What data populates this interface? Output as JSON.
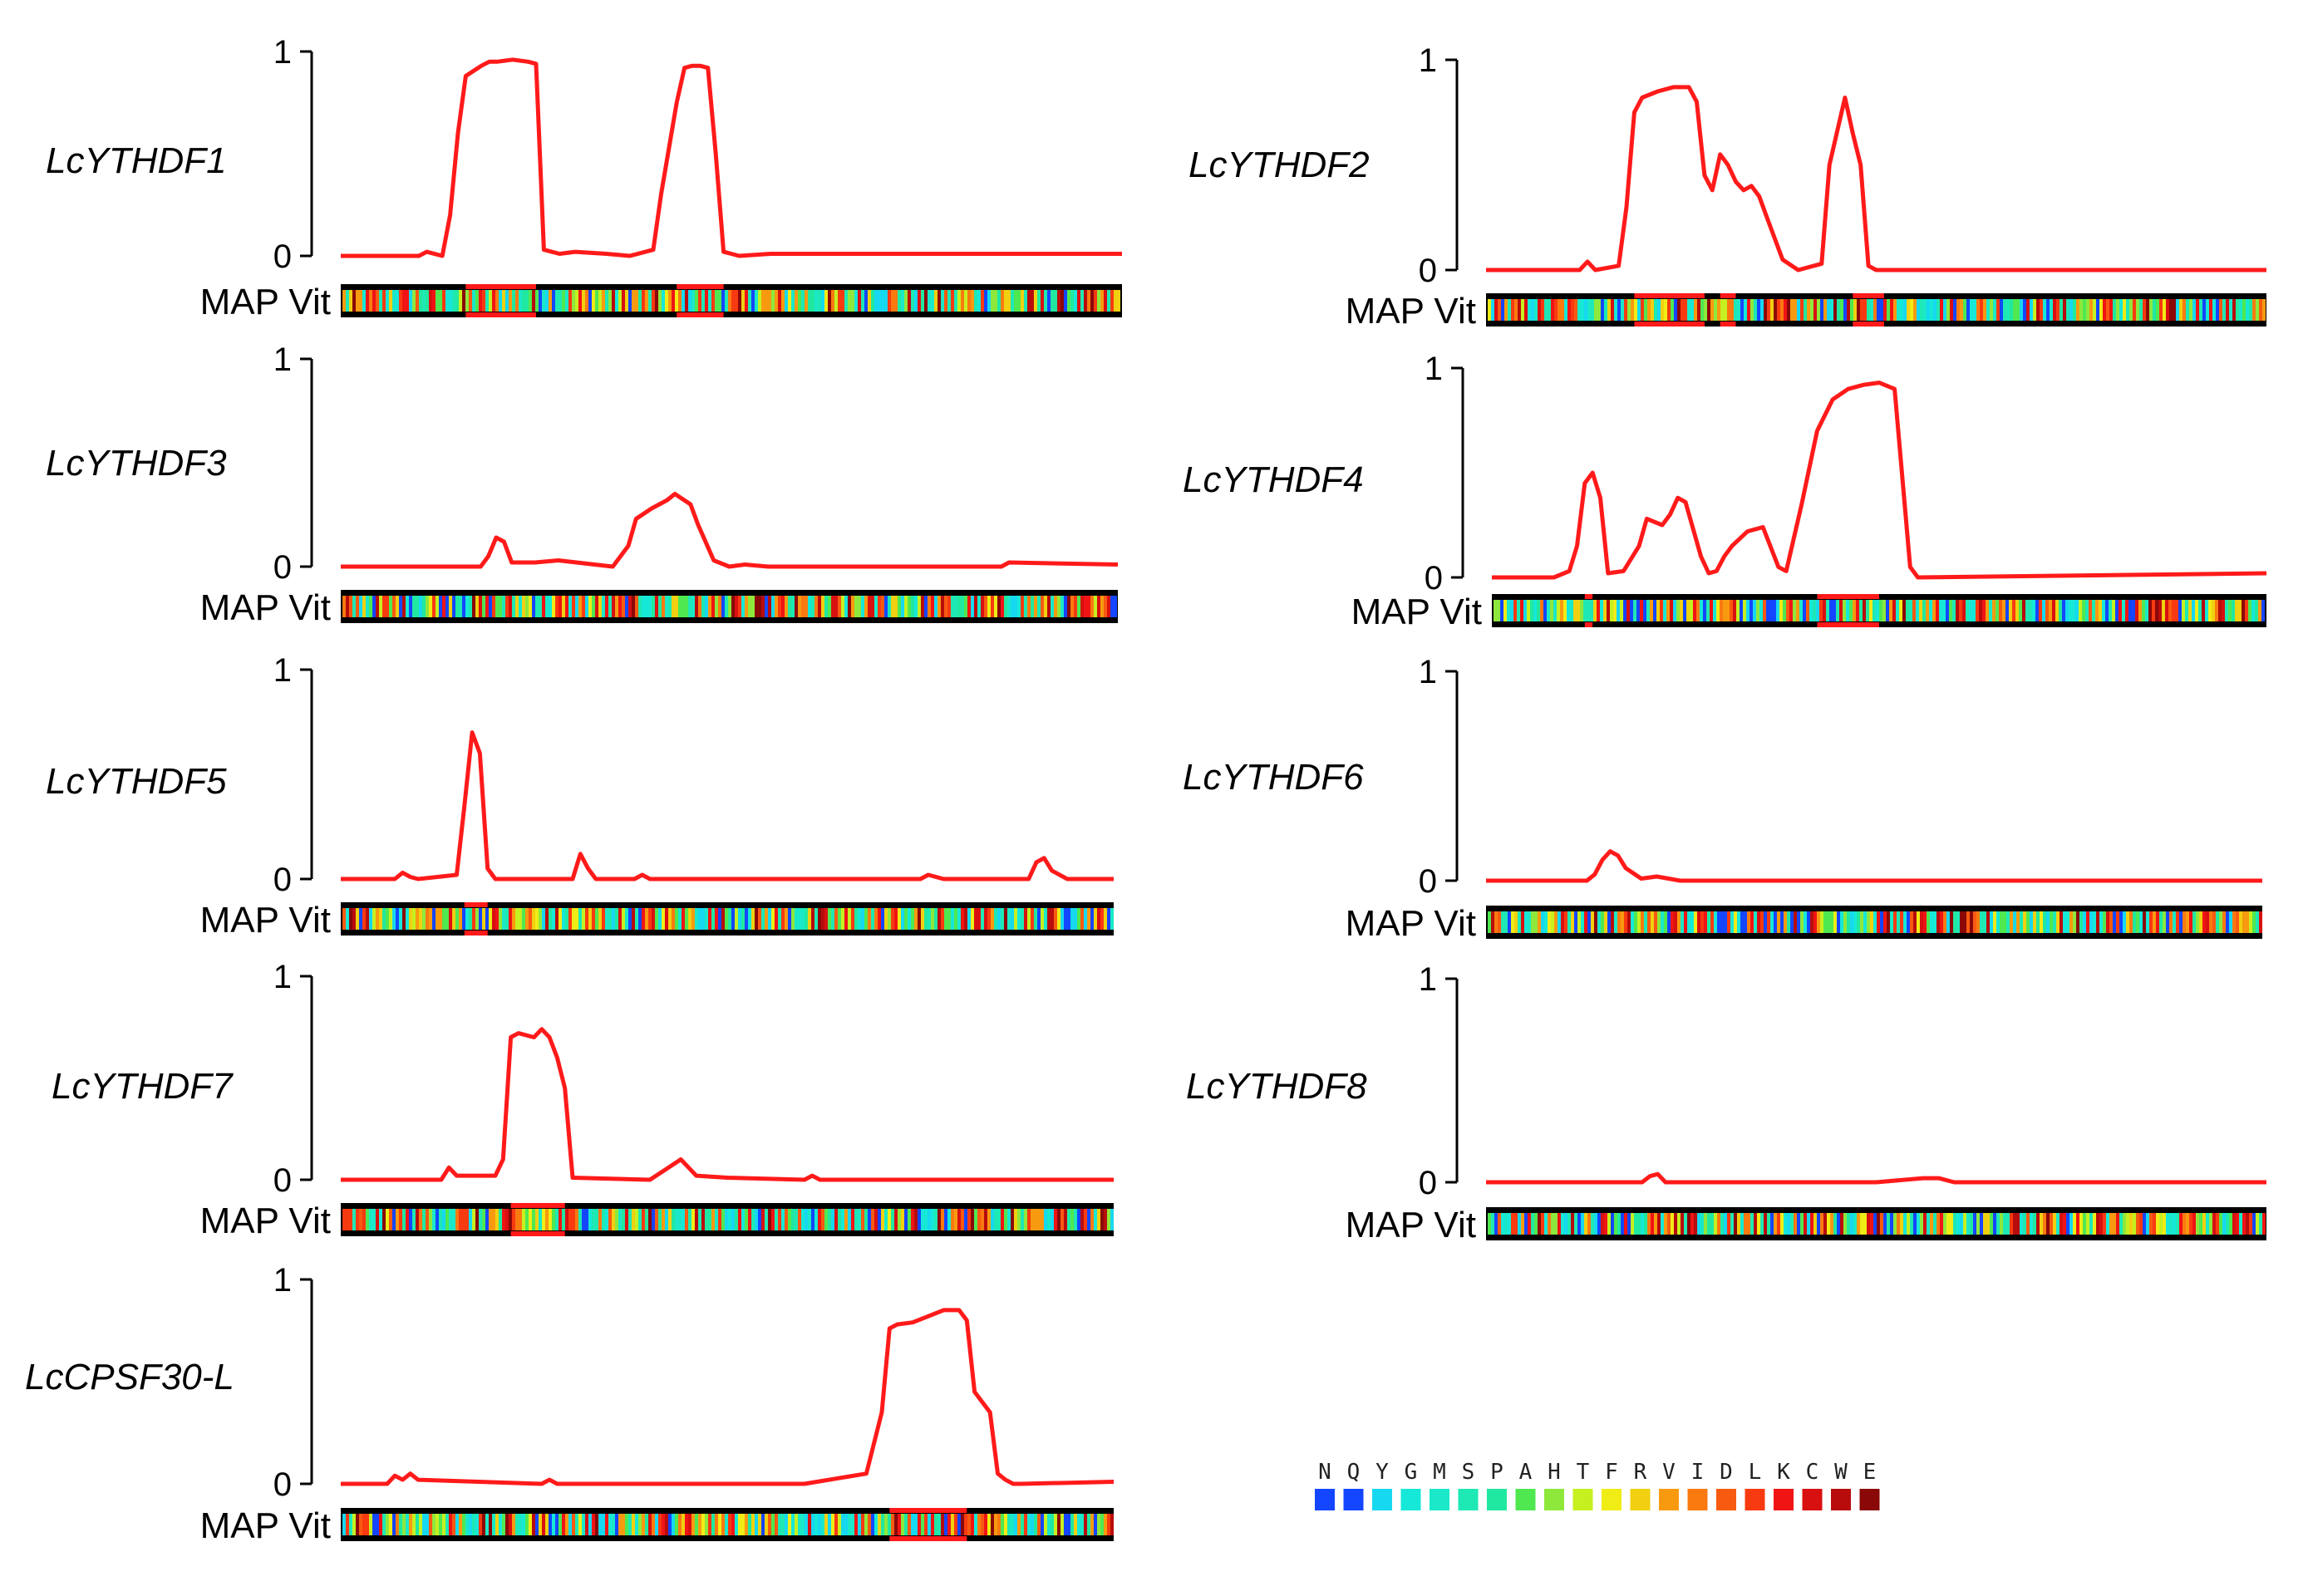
{
  "colors": {
    "line": "#ff1a1a",
    "axis": "#000000",
    "map_bg": "#000000",
    "map_highlight": "#ff1a1a"
  },
  "track_label": "MAP Vit",
  "y_ticks": [
    "0",
    "1"
  ],
  "legend": {
    "letters": [
      "N",
      "Q",
      "Y",
      "G",
      "M",
      "S",
      "P",
      "A",
      "H",
      "T",
      "F",
      "R",
      "V",
      "I",
      "D",
      "L",
      "K",
      "C",
      "W",
      "E"
    ],
    "colors": [
      "#1446ff",
      "#1446ff",
      "#16d8f0",
      "#16e8d8",
      "#1ae8c8",
      "#1ee8b4",
      "#20e8a0",
      "#4fe850",
      "#8ee83c",
      "#c6f020",
      "#f0ec16",
      "#f0d010",
      "#f89a10",
      "#fa7a10",
      "#f85a10",
      "#f83a10",
      "#f01414",
      "#d81010",
      "#b80c0c",
      "#8a0808"
    ]
  },
  "chart_data": [
    {
      "type": "line",
      "title": "LcYTHDF1",
      "ylim": [
        0,
        1
      ],
      "series": [
        {
          "x": [
            0,
            0.1,
            0.11,
            0.13,
            0.14,
            0.15,
            0.16,
            0.18,
            0.19,
            0.2,
            0.22,
            0.24,
            0.25,
            0.26,
            0.28,
            0.3,
            0.34,
            0.37,
            0.4,
            0.41,
            0.43,
            0.44,
            0.45,
            0.46,
            0.47,
            0.48,
            0.49,
            0.5,
            0.51,
            0.55,
            1.0
          ],
          "values": [
            0,
            0,
            0.02,
            0,
            0.2,
            0.6,
            0.88,
            0.93,
            0.95,
            0.95,
            0.96,
            0.95,
            0.94,
            0.03,
            0.01,
            0.02,
            0.01,
            0.0,
            0.03,
            0.3,
            0.75,
            0.92,
            0.93,
            0.93,
            0.92,
            0.5,
            0.02,
            0.01,
            0.0,
            0.01,
            0.01
          ]
        }
      ],
      "map_highlights": [
        [
          0.16,
          0.25
        ],
        [
          0.43,
          0.49
        ]
      ]
    },
    {
      "type": "line",
      "title": "LcYTHDF2",
      "ylim": [
        0,
        1
      ],
      "series": [
        {
          "x": [
            0,
            0.12,
            0.13,
            0.14,
            0.17,
            0.18,
            0.19,
            0.2,
            0.22,
            0.24,
            0.26,
            0.27,
            0.28,
            0.29,
            0.3,
            0.31,
            0.32,
            0.33,
            0.34,
            0.35,
            0.36,
            0.38,
            0.4,
            0.43,
            0.44,
            0.46,
            0.47,
            0.48,
            0.49,
            0.5,
            1.0
          ],
          "values": [
            0,
            0,
            0.04,
            0,
            0.02,
            0.3,
            0.75,
            0.82,
            0.85,
            0.87,
            0.87,
            0.8,
            0.45,
            0.38,
            0.55,
            0.5,
            0.42,
            0.38,
            0.4,
            0.35,
            0.25,
            0.05,
            0.0,
            0.03,
            0.5,
            0.82,
            0.65,
            0.5,
            0.02,
            0.0,
            0.0
          ]
        }
      ],
      "map_highlights": [
        [
          0.19,
          0.28
        ],
        [
          0.3,
          0.32
        ],
        [
          0.47,
          0.51
        ]
      ]
    },
    {
      "type": "line",
      "title": "LcYTHDF3",
      "ylim": [
        0,
        1
      ],
      "series": [
        {
          "x": [
            0,
            0.18,
            0.19,
            0.2,
            0.21,
            0.22,
            0.25,
            0.28,
            0.35,
            0.37,
            0.38,
            0.4,
            0.42,
            0.43,
            0.45,
            0.46,
            0.48,
            0.5,
            0.52,
            0.55,
            0.85,
            0.86,
            1.0
          ],
          "values": [
            0,
            0,
            0.05,
            0.14,
            0.12,
            0.02,
            0.02,
            0.03,
            0.0,
            0.1,
            0.23,
            0.28,
            0.32,
            0.35,
            0.3,
            0.2,
            0.03,
            0.0,
            0.01,
            0.0,
            0.0,
            0.02,
            0.01
          ]
        }
      ],
      "map_highlights": []
    },
    {
      "type": "line",
      "title": "LcYTHDF4",
      "ylim": [
        0,
        1
      ],
      "series": [
        {
          "x": [
            0,
            0.08,
            0.1,
            0.11,
            0.12,
            0.13,
            0.14,
            0.15,
            0.17,
            0.19,
            0.2,
            0.22,
            0.23,
            0.24,
            0.25,
            0.27,
            0.28,
            0.29,
            0.3,
            0.31,
            0.33,
            0.35,
            0.37,
            0.38,
            0.4,
            0.42,
            0.44,
            0.46,
            0.48,
            0.5,
            0.52,
            0.54,
            0.55,
            1.0
          ],
          "values": [
            0,
            0,
            0.03,
            0.15,
            0.45,
            0.5,
            0.38,
            0.02,
            0.03,
            0.15,
            0.28,
            0.25,
            0.3,
            0.38,
            0.36,
            0.1,
            0.02,
            0.03,
            0.1,
            0.15,
            0.22,
            0.24,
            0.05,
            0.03,
            0.35,
            0.7,
            0.85,
            0.9,
            0.92,
            0.93,
            0.9,
            0.05,
            0.0,
            0.02
          ]
        }
      ],
      "map_highlights": [
        [
          0.12,
          0.13
        ],
        [
          0.42,
          0.5
        ]
      ]
    },
    {
      "type": "line",
      "title": "LcYTHDF5",
      "ylim": [
        0,
        1
      ],
      "series": [
        {
          "x": [
            0,
            0.07,
            0.08,
            0.09,
            0.1,
            0.15,
            0.16,
            0.17,
            0.18,
            0.19,
            0.2,
            0.3,
            0.31,
            0.32,
            0.33,
            0.38,
            0.39,
            0.4,
            0.5,
            0.75,
            0.76,
            0.78,
            0.89,
            0.9,
            0.91,
            0.92,
            0.94,
            1.0
          ],
          "values": [
            0,
            0,
            0.03,
            0.01,
            0.0,
            0.02,
            0.35,
            0.7,
            0.6,
            0.05,
            0.0,
            0.0,
            0.12,
            0.05,
            0.0,
            0.0,
            0.02,
            0.0,
            0.0,
            0.0,
            0.02,
            0.0,
            0.0,
            0.08,
            0.1,
            0.04,
            0.0,
            0.0
          ]
        }
      ],
      "map_highlights": [
        [
          0.16,
          0.19
        ]
      ]
    },
    {
      "type": "line",
      "title": "LcYTHDF6",
      "ylim": [
        0,
        1
      ],
      "series": [
        {
          "x": [
            0,
            0.13,
            0.14,
            0.15,
            0.16,
            0.17,
            0.18,
            0.2,
            0.22,
            0.25,
            1.0
          ],
          "values": [
            0,
            0,
            0.03,
            0.1,
            0.14,
            0.12,
            0.06,
            0.01,
            0.02,
            0.0,
            0.0
          ]
        }
      ],
      "map_highlights": []
    },
    {
      "type": "line",
      "title": "LcYTHDF7",
      "ylim": [
        0,
        1
      ],
      "series": [
        {
          "x": [
            0,
            0.13,
            0.14,
            0.15,
            0.2,
            0.21,
            0.22,
            0.23,
            0.25,
            0.26,
            0.27,
            0.28,
            0.29,
            0.3,
            0.4,
            0.42,
            0.44,
            0.45,
            0.46,
            0.5,
            0.6,
            0.61,
            0.62,
            0.68,
            1.0
          ],
          "values": [
            0,
            0,
            0.06,
            0.02,
            0.02,
            0.1,
            0.7,
            0.72,
            0.7,
            0.74,
            0.7,
            0.6,
            0.45,
            0.01,
            0.0,
            0.05,
            0.1,
            0.06,
            0.02,
            0.01,
            0.0,
            0.02,
            0.0,
            0.0,
            0.0
          ]
        }
      ],
      "map_highlights": [
        [
          0.22,
          0.29
        ]
      ]
    },
    {
      "type": "line",
      "title": "LcYTHDF8",
      "ylim": [
        0,
        1
      ],
      "series": [
        {
          "x": [
            0,
            0.2,
            0.21,
            0.22,
            0.23,
            0.5,
            0.56,
            0.58,
            0.6,
            1.0
          ],
          "values": [
            0,
            0,
            0.03,
            0.04,
            0.0,
            0.0,
            0.02,
            0.02,
            0.0,
            0.0
          ]
        }
      ],
      "map_highlights": []
    },
    {
      "type": "line",
      "title": "LcCPSF30-L",
      "ylim": [
        0,
        1
      ],
      "series": [
        {
          "x": [
            0,
            0.06,
            0.07,
            0.08,
            0.09,
            0.1,
            0.26,
            0.27,
            0.28,
            0.6,
            0.68,
            0.69,
            0.7,
            0.71,
            0.72,
            0.74,
            0.76,
            0.78,
            0.8,
            0.81,
            0.82,
            0.83,
            0.84,
            0.85,
            0.86,
            0.87,
            0.88,
            1.0
          ],
          "values": [
            0,
            0,
            0.04,
            0.02,
            0.05,
            0.02,
            0.0,
            0.02,
            0.0,
            0.0,
            0.05,
            0.2,
            0.35,
            0.76,
            0.78,
            0.79,
            0.82,
            0.85,
            0.85,
            0.8,
            0.45,
            0.4,
            0.35,
            0.05,
            0.02,
            0.0,
            0.0,
            0.01
          ]
        }
      ],
      "map_highlights": [
        [
          0.71,
          0.81
        ]
      ]
    }
  ]
}
